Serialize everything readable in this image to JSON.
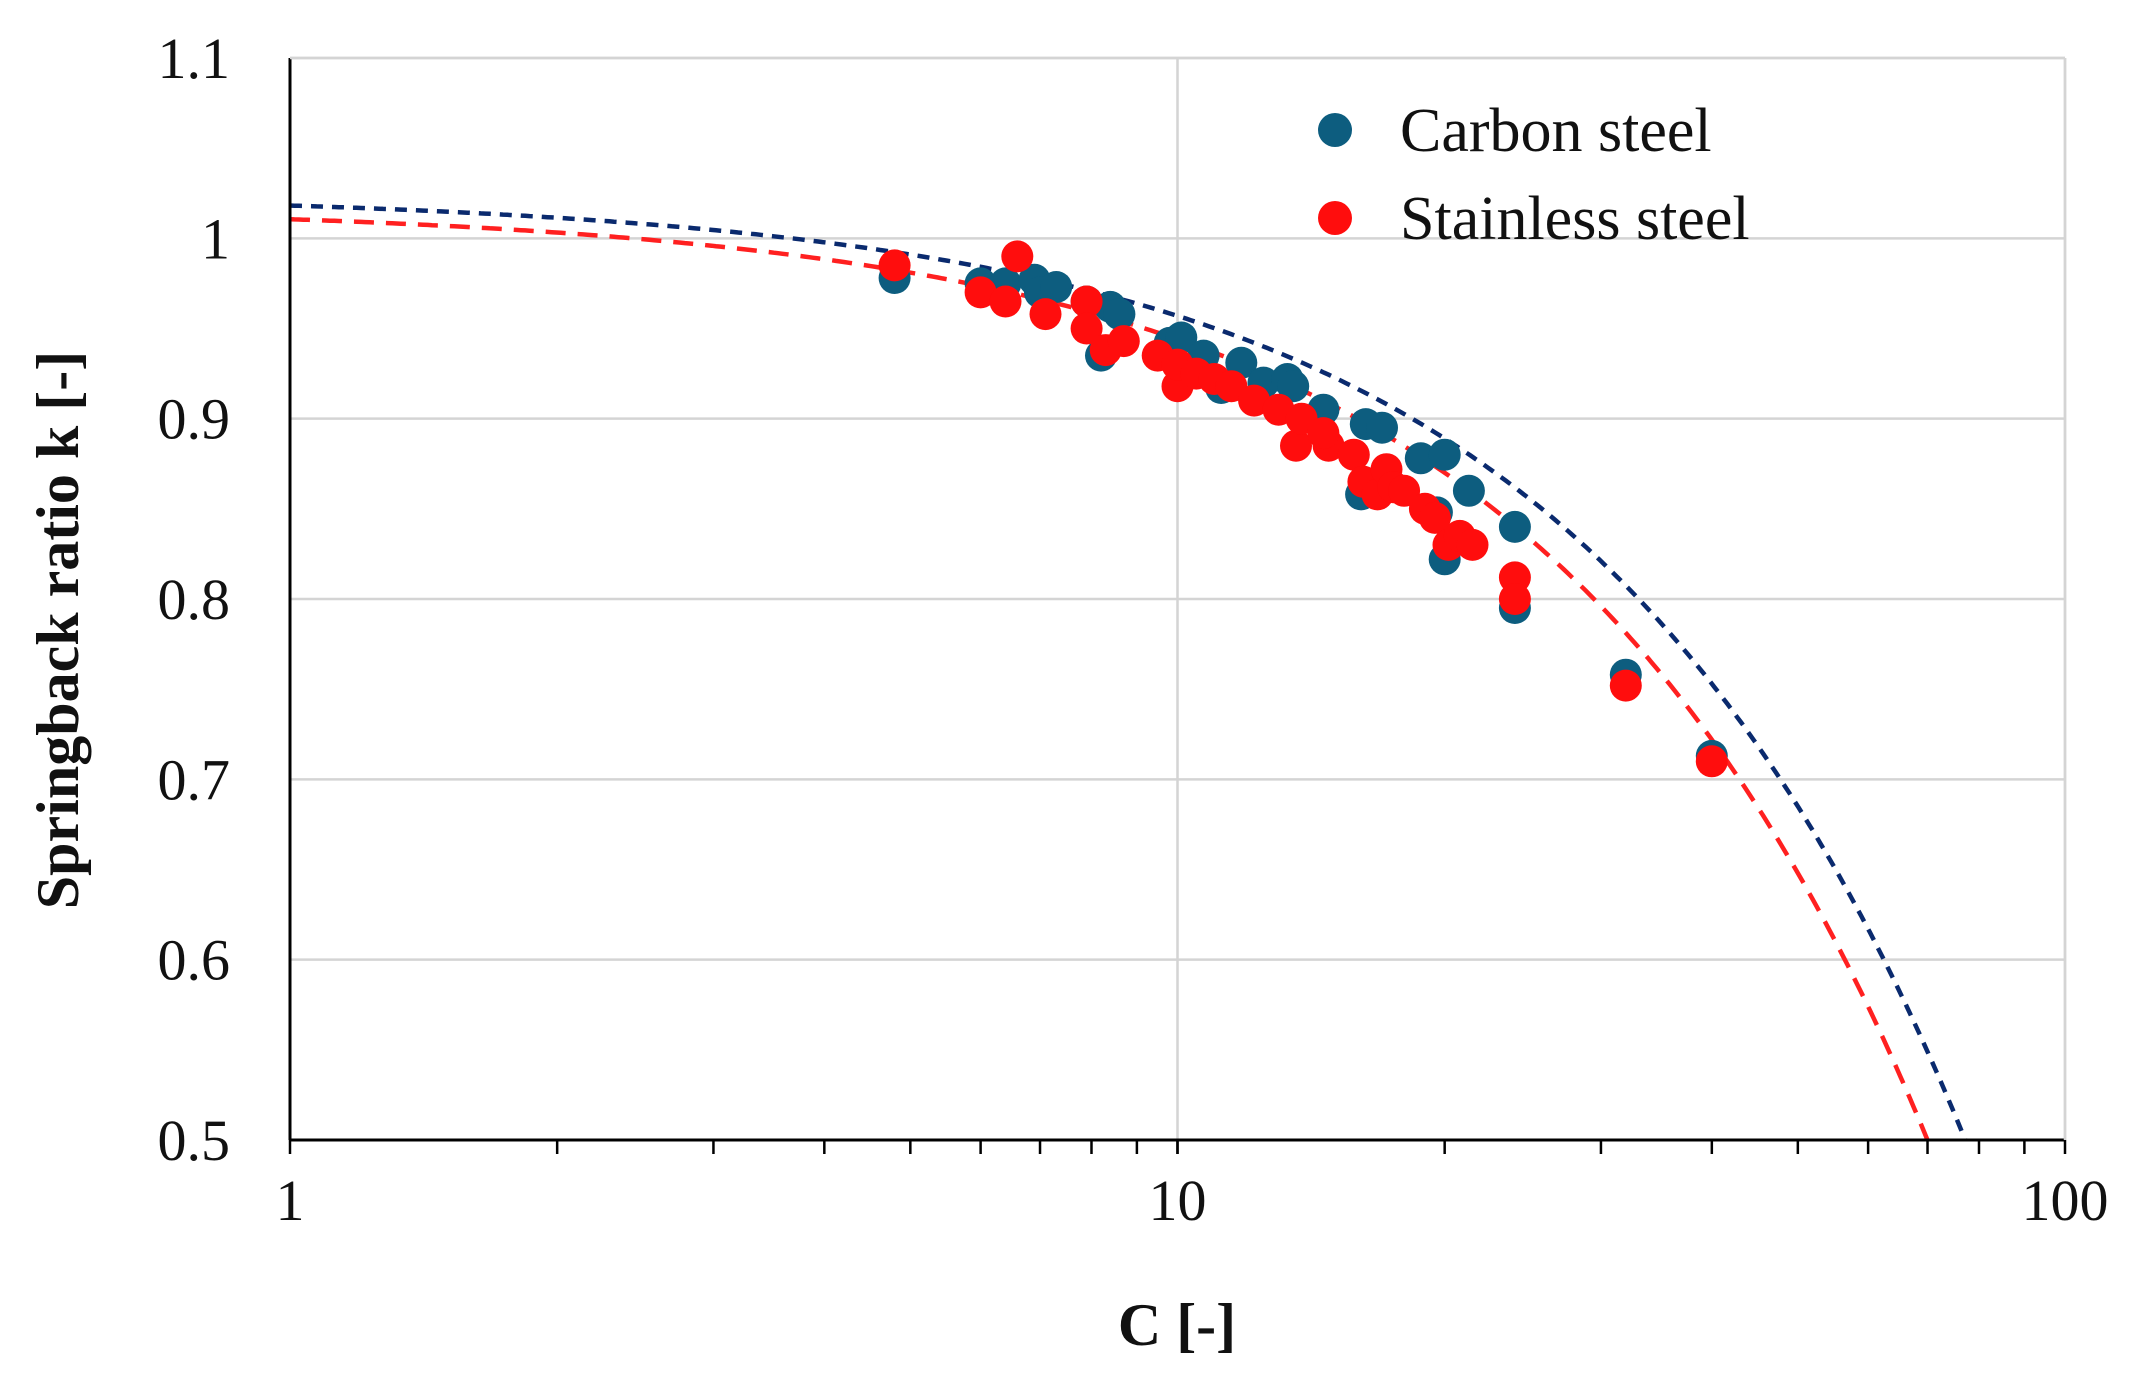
{
  "chart_data": {
    "type": "scatter",
    "title": "",
    "xlabel": "C [-]",
    "ylabel": "Springback ratio k [-]",
    "xscale": "log",
    "xlim": [
      1,
      100
    ],
    "ylim": [
      0.5,
      1.1
    ],
    "xticks": [
      1,
      10,
      100
    ],
    "xtick_labels": [
      "1",
      "10",
      "100"
    ],
    "yticks": [
      0.5,
      0.6,
      0.7,
      0.8,
      0.9,
      1.0,
      1.1
    ],
    "ytick_labels": [
      "0.5",
      "0.6",
      "0.7",
      "0.8",
      "0.9",
      "1",
      "1.1"
    ],
    "grid": true,
    "legend_position": "top-right",
    "series": [
      {
        "name": "Carbon steel",
        "color": "#0d5d7f",
        "points": [
          [
            4.8,
            0.978
          ],
          [
            6.0,
            0.975
          ],
          [
            6.4,
            0.975
          ],
          [
            6.9,
            0.977
          ],
          [
            7.0,
            0.97
          ],
          [
            7.3,
            0.973
          ],
          [
            7.9,
            0.965
          ],
          [
            8.2,
            0.935
          ],
          [
            8.4,
            0.962
          ],
          [
            8.6,
            0.958
          ],
          [
            9.8,
            0.942
          ],
          [
            10.1,
            0.945
          ],
          [
            10.7,
            0.935
          ],
          [
            11.2,
            0.917
          ],
          [
            11.8,
            0.931
          ],
          [
            12.5,
            0.92
          ],
          [
            13.3,
            0.922
          ],
          [
            13.5,
            0.918
          ],
          [
            14.6,
            0.905
          ],
          [
            16.1,
            0.858
          ],
          [
            16.3,
            0.897
          ],
          [
            17.0,
            0.895
          ],
          [
            18.8,
            0.878
          ],
          [
            20.0,
            0.88
          ],
          [
            19.6,
            0.848
          ],
          [
            20.0,
            0.822
          ],
          [
            21.3,
            0.86
          ],
          [
            24.0,
            0.84
          ],
          [
            24.0,
            0.795
          ],
          [
            32.0,
            0.758
          ],
          [
            40.0,
            0.713
          ]
        ]
      },
      {
        "name": "Stainless steel",
        "color": "#ff0d0d",
        "points": [
          [
            4.8,
            0.985
          ],
          [
            6.0,
            0.97
          ],
          [
            6.4,
            0.965
          ],
          [
            6.6,
            0.99
          ],
          [
            7.1,
            0.958
          ],
          [
            7.9,
            0.965
          ],
          [
            7.9,
            0.95
          ],
          [
            8.3,
            0.938
          ],
          [
            8.7,
            0.943
          ],
          [
            9.5,
            0.935
          ],
          [
            10.0,
            0.918
          ],
          [
            10.0,
            0.93
          ],
          [
            10.5,
            0.925
          ],
          [
            11.0,
            0.922
          ],
          [
            11.5,
            0.918
          ],
          [
            12.2,
            0.91
          ],
          [
            13.0,
            0.905
          ],
          [
            13.6,
            0.885
          ],
          [
            13.8,
            0.9
          ],
          [
            14.8,
            0.885
          ],
          [
            14.6,
            0.892
          ],
          [
            15.8,
            0.88
          ],
          [
            16.2,
            0.865
          ],
          [
            16.8,
            0.858
          ],
          [
            17.2,
            0.872
          ],
          [
            17.5,
            0.862
          ],
          [
            18.0,
            0.86
          ],
          [
            19.0,
            0.85
          ],
          [
            19.5,
            0.845
          ],
          [
            20.2,
            0.83
          ],
          [
            20.8,
            0.835
          ],
          [
            21.5,
            0.83
          ],
          [
            24.0,
            0.812
          ],
          [
            24.0,
            0.8
          ],
          [
            32.0,
            0.752
          ],
          [
            40.0,
            0.71
          ]
        ]
      }
    ],
    "fit_lines": [
      {
        "name": "Carbon steel fit",
        "color": "#0a2a6e",
        "style": "dashed",
        "k0": 1.025,
        "a": 0.0068
      },
      {
        "name": "Stainless steel fit",
        "color": "#ff2020",
        "style": "dashed",
        "k0": 1.018,
        "a": 0.0074
      }
    ]
  }
}
